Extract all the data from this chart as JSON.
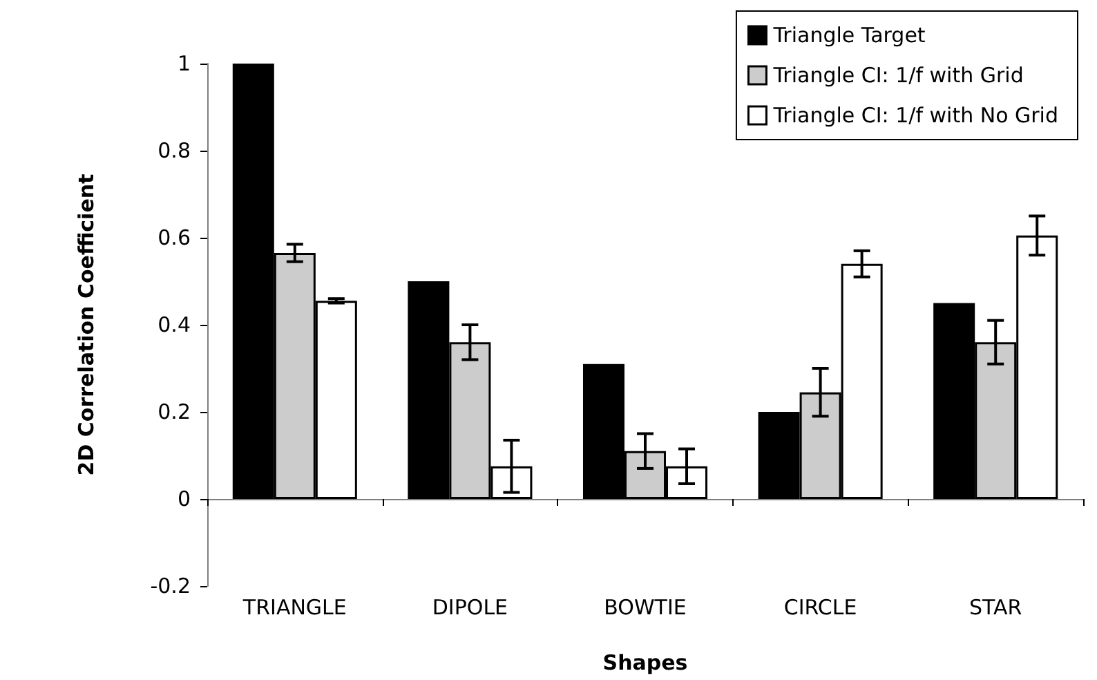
{
  "chart_data": {
    "type": "bar",
    "xlabel": "Shapes",
    "ylabel": "2D Correlation Coefficient",
    "categories": [
      "TRIANGLE",
      "DIPOLE",
      "BOWTIE",
      "CIRCLE",
      "STAR"
    ],
    "series": [
      {
        "name": "Triangle Target",
        "color": "#000000",
        "values": [
          1,
          0.5,
          0.31,
          0.2,
          0.45
        ]
      },
      {
        "name": "Triangle CI: 1/f with Grid",
        "color": "#cccccc",
        "values": [
          0.565,
          0.36,
          0.11,
          0.245,
          0.36
        ],
        "errors": [
          0.02,
          0.04,
          0.04,
          0.055,
          0.05
        ]
      },
      {
        "name": "Triangle CI: 1/f with No Grid",
        "color": "#ffffff",
        "values": [
          0.455,
          0.075,
          0.075,
          0.54,
          0.605
        ],
        "errors": [
          0.005,
          0.06,
          0.04,
          0.03,
          0.045
        ]
      }
    ],
    "ylim": [
      -0.2,
      1
    ],
    "yticks": [
      -0.2,
      0,
      0.2,
      0.4,
      0.6,
      0.8,
      1
    ],
    "legend": "top right"
  }
}
